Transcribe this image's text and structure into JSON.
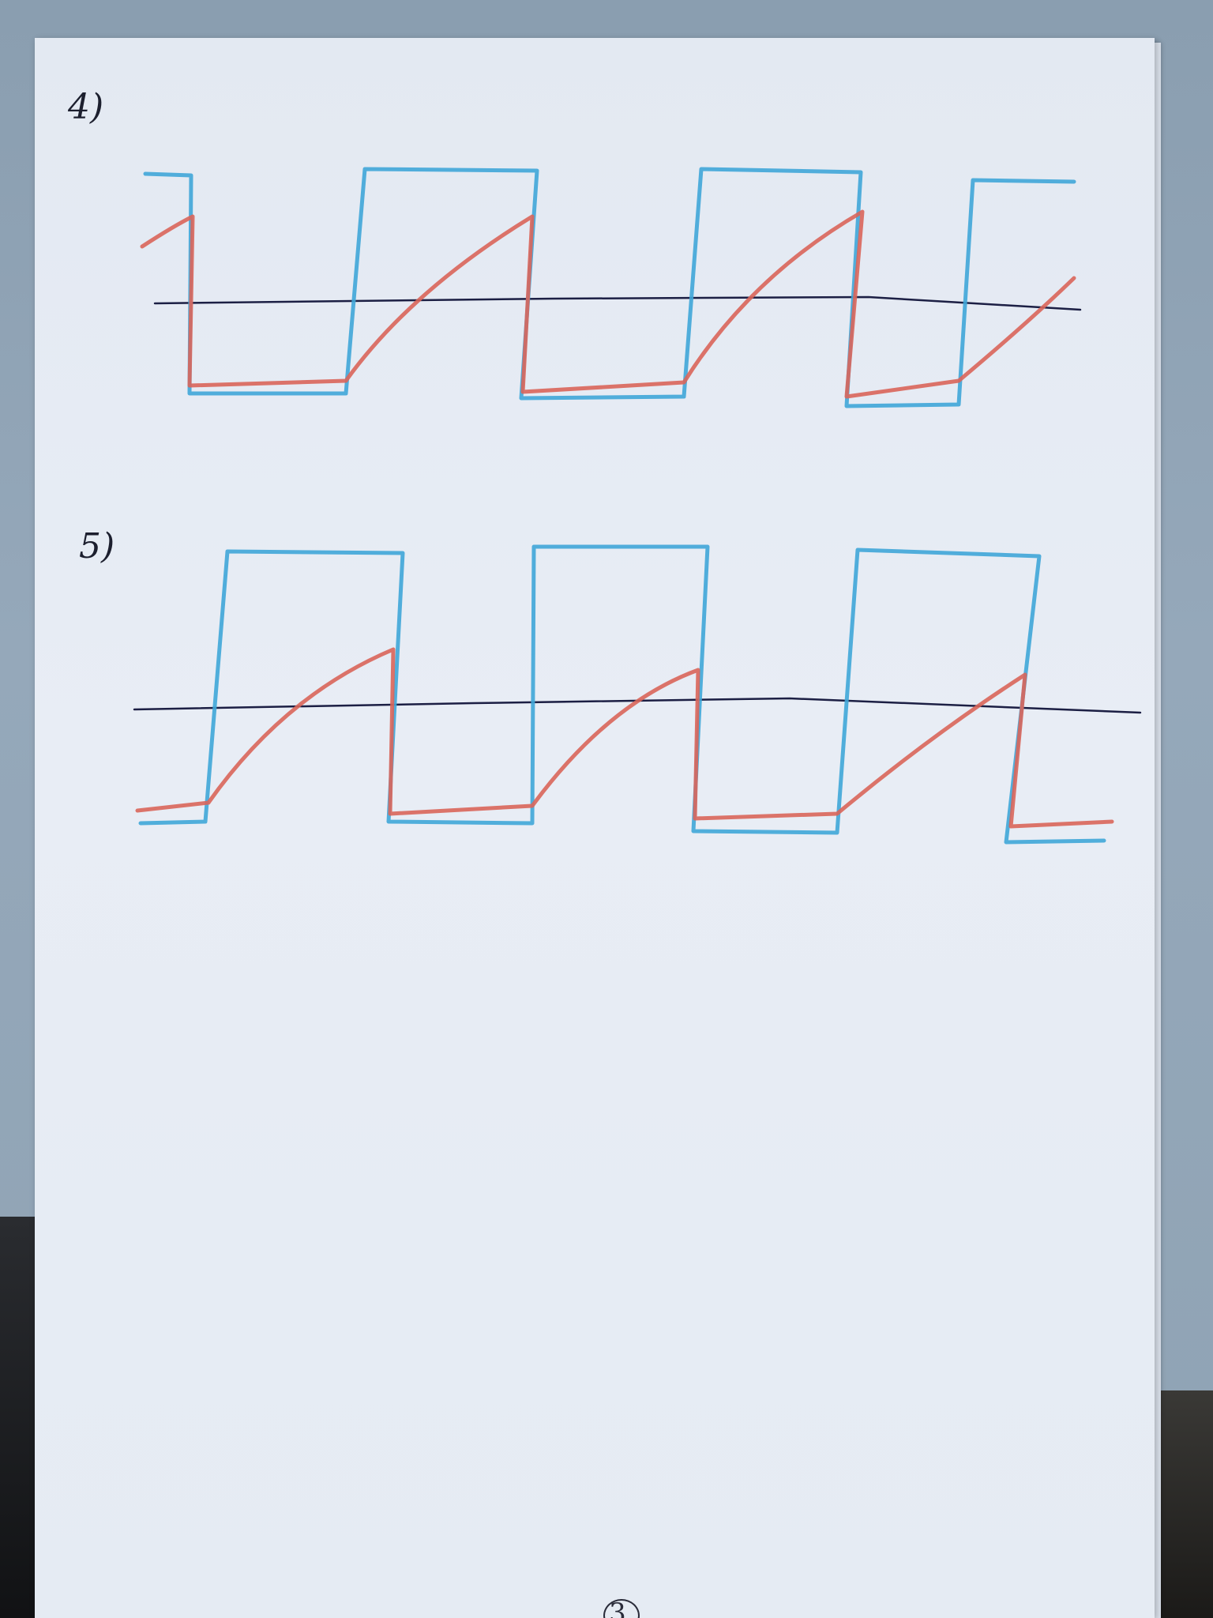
{
  "page": {
    "label_4": "4)",
    "label_5": "5)",
    "page_number": "3"
  },
  "colors": {
    "square_wave": "#3fa6d8",
    "sawtooth": "#d9655a",
    "axis": "#1c1f44",
    "paper": "#e6ecf4",
    "background": "#8fa3b4"
  }
}
